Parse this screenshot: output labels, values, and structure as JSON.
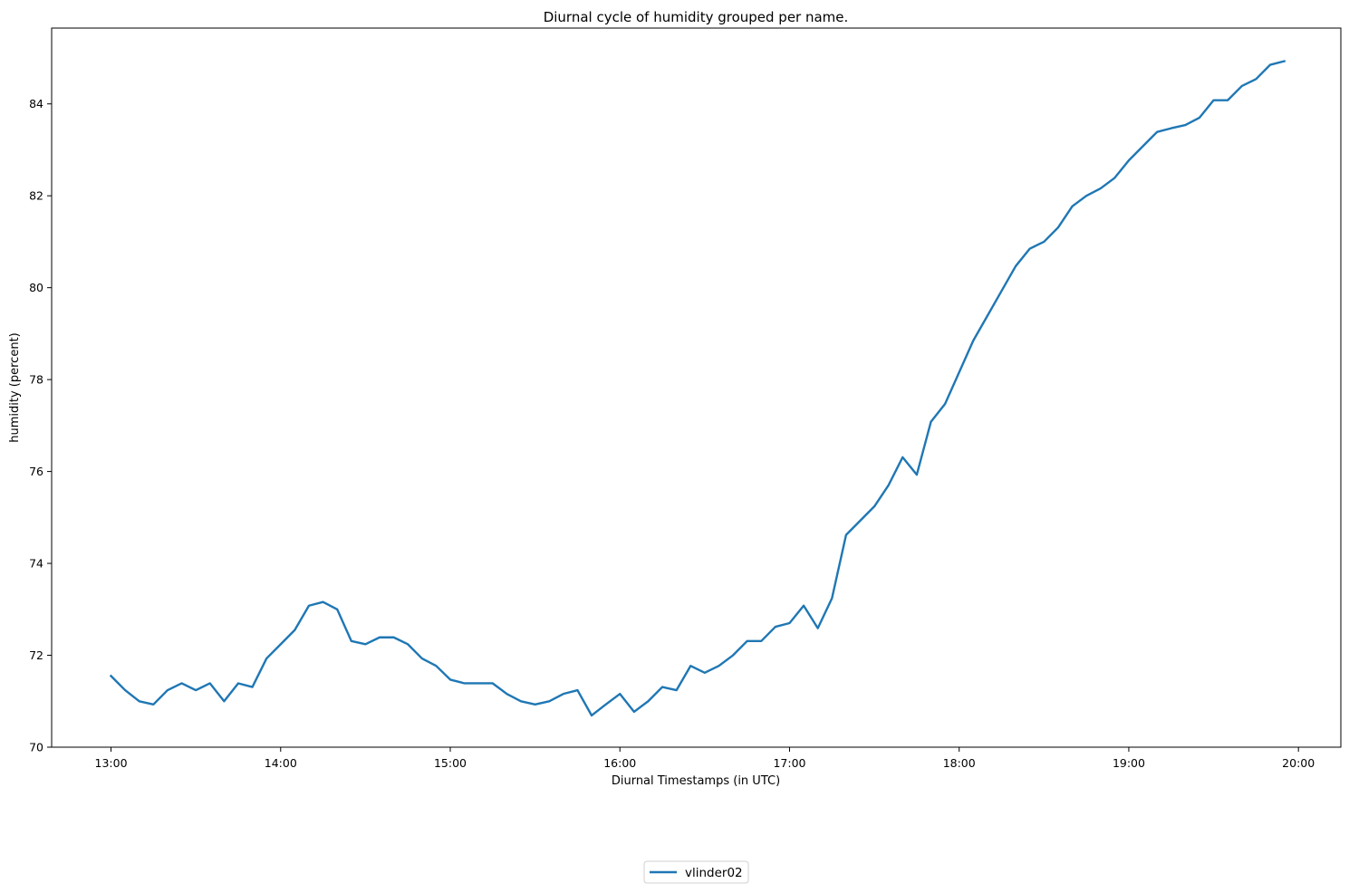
{
  "chart_data": {
    "type": "line",
    "title": "Diurnal cycle of humidity grouped per name.",
    "xlabel": "Diurnal Timestamps (in UTC)",
    "ylabel": "humidity (percent)",
    "x_ticks": [
      "13:00",
      "14:00",
      "15:00",
      "16:00",
      "17:00",
      "18:00",
      "19:00",
      "20:00"
    ],
    "y_ticks": [
      70,
      72,
      74,
      76,
      78,
      80,
      82,
      84
    ],
    "xlim": [
      "12:39",
      "20:15"
    ],
    "ylim": [
      70,
      85.65
    ],
    "grid": false,
    "legend_position": "bottom-center",
    "line_color": "#1f77b4",
    "x": [
      "13:00",
      "13:05",
      "13:10",
      "13:15",
      "13:20",
      "13:25",
      "13:30",
      "13:35",
      "13:40",
      "13:45",
      "13:50",
      "13:55",
      "14:00",
      "14:05",
      "14:10",
      "14:15",
      "14:20",
      "14:25",
      "14:30",
      "14:35",
      "14:40",
      "14:45",
      "14:50",
      "14:55",
      "15:00",
      "15:05",
      "15:10",
      "15:15",
      "15:20",
      "15:25",
      "15:30",
      "15:35",
      "15:40",
      "15:45",
      "15:50",
      "15:55",
      "16:00",
      "16:05",
      "16:10",
      "16:15",
      "16:20",
      "16:25",
      "16:30",
      "16:35",
      "16:40",
      "16:45",
      "16:50",
      "16:55",
      "17:00",
      "17:05",
      "17:10",
      "17:15",
      "17:20",
      "17:25",
      "17:30",
      "17:35",
      "17:40",
      "17:45",
      "17:50",
      "17:55",
      "18:00",
      "18:05",
      "18:10",
      "18:15",
      "18:20",
      "18:25",
      "18:30",
      "18:35",
      "18:40",
      "18:45",
      "18:50",
      "18:55",
      "19:00",
      "19:05",
      "19:10",
      "19:15",
      "19:20",
      "19:25",
      "19:30",
      "19:35",
      "19:40",
      "19:45",
      "19:50",
      "19:55"
    ],
    "series": [
      {
        "name": "vlinder02",
        "values": [
          71.55,
          71.24,
          71.0,
          70.93,
          71.24,
          71.39,
          71.24,
          71.39,
          71.0,
          71.39,
          71.31,
          71.93,
          72.24,
          72.55,
          73.08,
          73.16,
          73.0,
          72.31,
          72.24,
          72.39,
          72.39,
          72.24,
          71.93,
          71.77,
          71.47,
          71.39,
          71.39,
          71.39,
          71.16,
          71.0,
          70.93,
          71.0,
          71.16,
          71.24,
          70.69,
          70.93,
          71.16,
          70.77,
          71.0,
          71.31,
          71.24,
          71.77,
          71.62,
          71.77,
          72.0,
          72.31,
          72.31,
          72.62,
          72.7,
          73.08,
          72.59,
          73.24,
          74.62,
          74.93,
          75.24,
          75.7,
          76.31,
          75.93,
          77.08,
          77.47,
          78.16,
          78.85,
          79.39,
          79.93,
          80.47,
          80.85,
          81.0,
          81.31,
          81.77,
          82.0,
          82.16,
          82.39,
          82.77,
          83.08,
          83.39,
          83.47,
          83.54,
          83.7,
          84.08,
          84.08,
          84.39,
          84.54,
          84.85,
          84.93
        ]
      }
    ]
  }
}
